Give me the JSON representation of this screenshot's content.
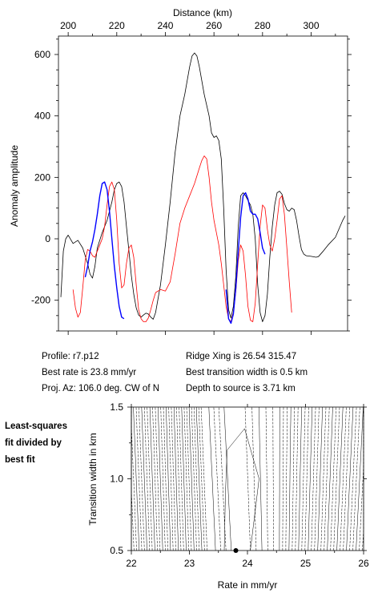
{
  "chart_data": [
    {
      "type": "line",
      "title": "",
      "xlabel": "Distance (km)",
      "ylabel": "Anomaly amplitude",
      "xlim": [
        196,
        315
      ],
      "ylim": [
        -300,
        660
      ],
      "x_ticks": [
        200,
        220,
        240,
        260,
        280,
        300
      ],
      "y_ticks": [
        -200,
        0,
        200,
        400,
        600
      ],
      "grid": false,
      "series": [
        {
          "color": "#000000",
          "points": [
            [
              197,
              -190
            ],
            [
              198,
              -40
            ],
            [
              199,
              0
            ],
            [
              200,
              12
            ],
            [
              202,
              -15
            ],
            [
              204,
              -5
            ],
            [
              206,
              -30
            ],
            [
              208,
              -80
            ],
            [
              209,
              -115
            ],
            [
              210,
              -128
            ],
            [
              211,
              -90
            ],
            [
              212,
              -30
            ],
            [
              214,
              20
            ],
            [
              216,
              60
            ],
            [
              218,
              120
            ],
            [
              219,
              160
            ],
            [
              220,
              180
            ],
            [
              221,
              185
            ],
            [
              222,
              170
            ],
            [
              223,
              120
            ],
            [
              224,
              40
            ],
            [
              225,
              -40
            ],
            [
              226,
              -120
            ],
            [
              227,
              -180
            ],
            [
              228,
              -225
            ],
            [
              229,
              -248
            ],
            [
              230,
              -255
            ],
            [
              231,
              -248
            ],
            [
              232,
              -242
            ],
            [
              233,
              -245
            ],
            [
              234,
              -255
            ],
            [
              235,
              -262
            ],
            [
              236,
              -240
            ],
            [
              238,
              -150
            ],
            [
              240,
              -20
            ],
            [
              242,
              120
            ],
            [
              244,
              280
            ],
            [
              246,
              400
            ],
            [
              248,
              470
            ],
            [
              250,
              560
            ],
            [
              251,
              595
            ],
            [
              252,
              605
            ],
            [
              253,
              595
            ],
            [
              254,
              560
            ],
            [
              256,
              470
            ],
            [
              258,
              400
            ],
            [
              259,
              345
            ],
            [
              260,
              330
            ],
            [
              261,
              335
            ],
            [
              262,
              320
            ],
            [
              263,
              260
            ],
            [
              264,
              100
            ],
            [
              265,
              -100
            ],
            [
              266,
              -230
            ],
            [
              267,
              -258
            ],
            [
              268,
              -220
            ],
            [
              269,
              -120
            ],
            [
              270,
              40
            ],
            [
              271,
              140
            ],
            [
              272,
              150
            ],
            [
              273,
              140
            ],
            [
              274,
              125
            ],
            [
              275,
              110
            ],
            [
              276,
              80
            ],
            [
              277,
              0
            ],
            [
              278,
              -150
            ],
            [
              279,
              -240
            ],
            [
              280,
              -270
            ],
            [
              281,
              -250
            ],
            [
              282,
              -180
            ],
            [
              283,
              -60
            ],
            [
              284,
              40
            ],
            [
              285,
              110
            ],
            [
              286,
              150
            ],
            [
              287,
              155
            ],
            [
              288,
              145
            ],
            [
              289,
              115
            ],
            [
              290,
              95
            ],
            [
              291,
              90
            ],
            [
              292,
              100
            ],
            [
              293,
              95
            ],
            [
              294,
              60
            ],
            [
              295,
              10
            ],
            [
              296,
              -35
            ],
            [
              297,
              -50
            ],
            [
              298,
              -55
            ],
            [
              300,
              -57
            ],
            [
              302,
              -60
            ],
            [
              303,
              -58
            ],
            [
              305,
              -40
            ],
            [
              307,
              -20
            ],
            [
              310,
              5
            ],
            [
              313,
              60
            ],
            [
              314,
              75
            ]
          ]
        },
        {
          "color": "#ff0000",
          "points": [
            [
              202,
              -165
            ],
            [
              203,
              -225
            ],
            [
              204,
              -255
            ],
            [
              205,
              -240
            ],
            [
              206,
              -160
            ],
            [
              207,
              -70
            ],
            [
              208,
              -35
            ],
            [
              209,
              -40
            ],
            [
              210,
              -55
            ],
            [
              211,
              -60
            ],
            [
              212,
              -40
            ],
            [
              213,
              -20
            ],
            [
              214,
              0
            ],
            [
              215,
              40
            ],
            [
              216,
              110
            ],
            [
              217,
              170
            ],
            [
              218,
              185
            ],
            [
              219,
              160
            ],
            [
              220,
              60
            ],
            [
              221,
              -80
            ],
            [
              222,
              -160
            ],
            [
              223,
              -150
            ],
            [
              224,
              -80
            ],
            [
              225,
              -30
            ],
            [
              226,
              -20
            ],
            [
              227,
              -60
            ],
            [
              228,
              -150
            ],
            [
              229,
              -230
            ],
            [
              230,
              -260
            ],
            [
              231,
              -270
            ],
            [
              232,
              -270
            ],
            [
              233,
              -258
            ],
            [
              234,
              -230
            ],
            [
              235,
              -200
            ],
            [
              236,
              -175
            ],
            [
              238,
              -165
            ],
            [
              240,
              -170
            ],
            [
              242,
              -140
            ],
            [
              244,
              -50
            ],
            [
              246,
              50
            ],
            [
              248,
              100
            ],
            [
              250,
              140
            ],
            [
              252,
              180
            ],
            [
              254,
              230
            ],
            [
              255,
              255
            ],
            [
              256,
              270
            ],
            [
              257,
              260
            ],
            [
              258,
              200
            ],
            [
              259,
              120
            ],
            [
              260,
              60
            ],
            [
              261,
              20
            ],
            [
              262,
              -20
            ],
            [
              263,
              -80
            ],
            [
              264,
              -150
            ],
            [
              265,
              -220
            ],
            [
              266,
              -260
            ],
            [
              267,
              -270
            ],
            [
              268,
              -240
            ],
            [
              269,
              -170
            ],
            [
              270,
              -70
            ],
            [
              271,
              -20
            ],
            [
              272,
              -40
            ],
            [
              273,
              -120
            ],
            [
              274,
              -220
            ],
            [
              275,
              -265
            ],
            [
              276,
              -270
            ],
            [
              277,
              -210
            ],
            [
              278,
              -80
            ],
            [
              279,
              40
            ],
            [
              280,
              110
            ],
            [
              281,
              100
            ],
            [
              282,
              30
            ],
            [
              283,
              -20
            ],
            [
              284,
              -40
            ],
            [
              285,
              0
            ],
            [
              286,
              60
            ],
            [
              287,
              130
            ],
            [
              288,
              140
            ],
            [
              289,
              80
            ],
            [
              290,
              -30
            ],
            [
              291,
              -140
            ],
            [
              292,
              -240
            ]
          ]
        },
        {
          "color": "#0000ff",
          "points": [
            [
              207,
              -125
            ],
            [
              208,
              -90
            ],
            [
              209,
              -40
            ],
            [
              210,
              -10
            ],
            [
              211,
              30
            ],
            [
              212,
              80
            ],
            [
              213,
              140
            ],
            [
              214,
              180
            ],
            [
              215,
              185
            ],
            [
              216,
              160
            ],
            [
              217,
              90
            ],
            [
              218,
              0
            ],
            [
              219,
              -90
            ],
            [
              220,
              -160
            ],
            [
              221,
              -220
            ],
            [
              222,
              -255
            ],
            [
              223,
              -260
            ],
            [
              265,
              -165
            ],
            [
              266,
              -260
            ],
            [
              267,
              -275
            ],
            [
              268,
              -245
            ],
            [
              269,
              -160
            ],
            [
              270,
              -40
            ],
            [
              271,
              70
            ],
            [
              272,
              140
            ],
            [
              273,
              150
            ],
            [
              274,
              130
            ],
            [
              275,
              90
            ],
            [
              276,
              80
            ],
            [
              277,
              80
            ],
            [
              278,
              65
            ],
            [
              279,
              20
            ],
            [
              280,
              -30
            ],
            [
              281,
              -50
            ]
          ]
        }
      ]
    },
    {
      "type": "contour",
      "title": "",
      "xlabel": "Rate in mm/yr",
      "ylabel": "Transition width in km",
      "xlim": [
        22,
        26
      ],
      "ylim": [
        0.5,
        1.5
      ],
      "x_ticks": [
        22,
        23,
        24,
        25,
        26
      ],
      "y_ticks": [
        0.5,
        1.0,
        1.5
      ],
      "grid": false,
      "best_fit_point": {
        "rate": 23.8,
        "width": 0.5
      }
    }
  ],
  "info": {
    "profile": "Profile: r7.p12",
    "ridge_xing": "Ridge Xing is 26.54 315.47",
    "best_rate": "Best rate is 23.8 mm/yr",
    "best_width": "Best transition width is 0.5 km",
    "proj_az": "Proj. Az: 106.0 deg. CW of N",
    "depth": "Depth to source is   3.71 km"
  },
  "side_note": [
    "Least-squares",
    "fit divided by",
    "best fit"
  ]
}
